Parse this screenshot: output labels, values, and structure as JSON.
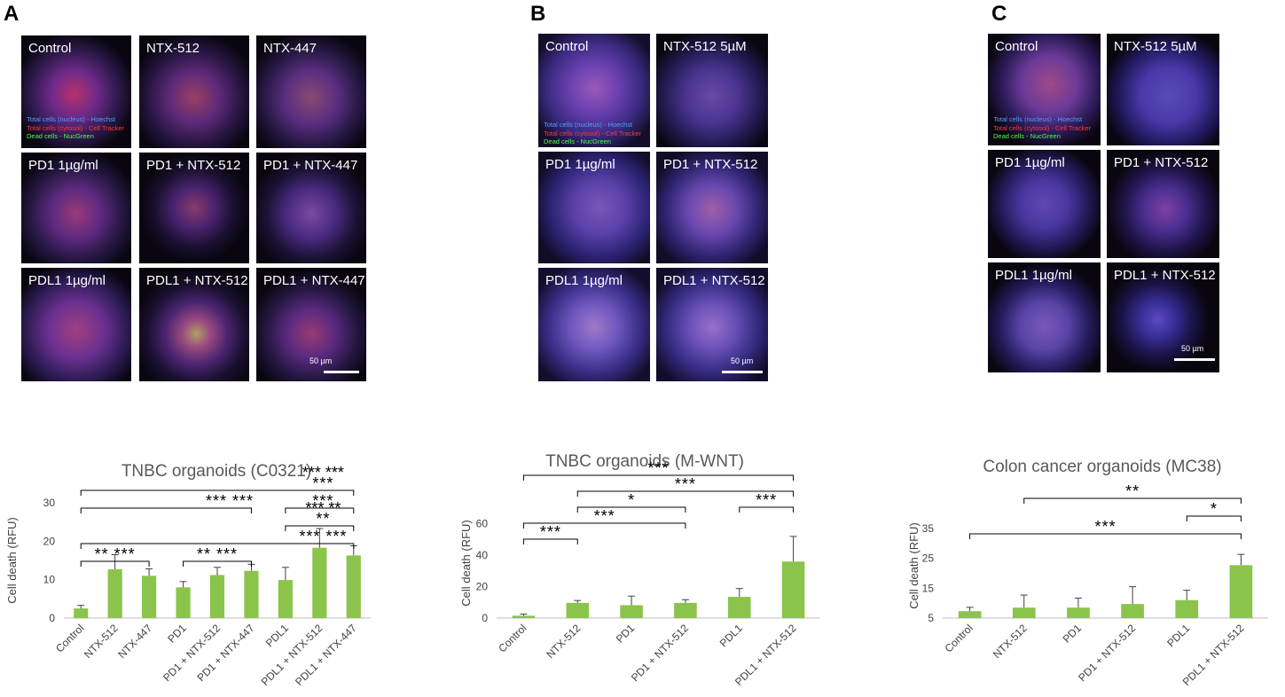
{
  "panels": [
    {
      "letter": "A",
      "legend": [
        "Total cells (nucleus) - Hoechst",
        "Total cells (cytosol) - Cell Tracker",
        "Dead cells - NucGreen"
      ],
      "legend_colors": [
        "#4aa3ff",
        "#ff3a3a",
        "#4cff4c"
      ],
      "scalebar": "50 µm",
      "tiles": [
        "Control",
        "NTX-512",
        "NTX-447",
        "PD1 1µg/ml",
        "PD1 + NTX-512",
        "PD1 + NTX-447",
        "PDL1 1µg/ml",
        "PDL1 + NTX-512",
        "PDL1 + NTX-447"
      ]
    },
    {
      "letter": "B",
      "legend": [
        "Total cells (nucleus) - Hoechst",
        "Total cells (cytosol) - Cell Tracker",
        "Dead cells - NucGreen"
      ],
      "legend_colors": [
        "#4aa3ff",
        "#ff3a3a",
        "#4cff4c"
      ],
      "scalebar": "50 µm",
      "tiles": [
        "Control",
        "NTX-512   5µM",
        "PD1 1µg/ml",
        "PD1 + NTX-512",
        "PDL1 1µg/ml",
        "PDL1 + NTX-512"
      ]
    },
    {
      "letter": "C",
      "legend": [
        "Total cells (nucleus) - Hoechst",
        "Total cells (cytosol) - Cell Tracker",
        "Dead cells - NucGreen"
      ],
      "legend_colors": [
        "#4aa3ff",
        "#ff3a3a",
        "#4cff4c"
      ],
      "scalebar": "50 µm",
      "tiles": [
        "Control",
        "NTX-512   5µM",
        "PD1 1µg/ml",
        "PD1 + NTX-512",
        "PDL1 1µg/ml",
        "PDL1 + NTX-512"
      ]
    }
  ],
  "chart_data": [
    {
      "type": "bar",
      "title": "TNBC organoids (C0321)",
      "ylabel": "Cell death (RFU)",
      "ylim": [
        0,
        30
      ],
      "yticks": [
        0,
        10,
        20,
        30
      ],
      "categories": [
        "Control",
        "NTX-512",
        "NTX-447",
        "PD1",
        "PD1 + NTX-512",
        "PD1 + NTX-447",
        "PDL1",
        "PDL1 + NTX-512",
        "PDL1 + NTX-447"
      ],
      "values": [
        2.5,
        12.7,
        11.0,
        8.0,
        11.2,
        12.3,
        9.9,
        18.3,
        16.3
      ],
      "errors": [
        0.8,
        3.8,
        1.8,
        1.5,
        2.0,
        1.7,
        3.3,
        5.0,
        2.5
      ],
      "bar_color": "#8ac44a",
      "significance": [
        {
          "from": 0,
          "to": 8,
          "label": "***",
          "level": 5
        },
        {
          "from": 6,
          "to": 8,
          "label": "***",
          "level": 4
        },
        {
          "from": 0,
          "to": 5,
          "label": "*** ***",
          "level": 4
        },
        {
          "from": 6,
          "to": 8,
          "label": "**",
          "level": 3
        },
        {
          "from": 0,
          "to": 8,
          "label": "*** ***",
          "level": 2
        },
        {
          "from": 0,
          "to": 2,
          "label": "** ***",
          "level": 1
        },
        {
          "from": 3,
          "to": 5,
          "label": "** ***",
          "level": 1
        }
      ],
      "header_stars": [
        "*** ***",
        "*** **"
      ]
    },
    {
      "type": "bar",
      "title": "TNBC organoids (M-WNT)",
      "ylabel": "Cell death (RFU)",
      "ylim": [
        0,
        70
      ],
      "yticks": [
        0,
        20,
        40,
        60
      ],
      "categories": [
        "Control",
        "NTX-512",
        "PD1",
        "PD1 + NTX-512",
        "PDL1",
        "PDL1 + NTX-512"
      ],
      "values": [
        1.5,
        9.7,
        8.2,
        9.7,
        13.5,
        36.0
      ],
      "errors": [
        1.0,
        1.5,
        5.8,
        2.0,
        5.3,
        16.0
      ],
      "bar_color": "#8ac44a",
      "significance": [
        {
          "from": 0,
          "to": 5,
          "label": "***",
          "level": 5
        },
        {
          "from": 1,
          "to": 5,
          "label": "***",
          "level": 4
        },
        {
          "from": 1,
          "to": 3,
          "label": "*",
          "level": 3
        },
        {
          "from": 4,
          "to": 5,
          "label": "***",
          "level": 3
        },
        {
          "from": 0,
          "to": 3,
          "label": "***",
          "level": 2
        },
        {
          "from": 0,
          "to": 1,
          "label": "***",
          "level": 1
        }
      ]
    },
    {
      "type": "bar",
      "title": "Colon cancer organoids (MC38)",
      "ylabel": "Cell death (RFU)",
      "ylim": [
        5,
        40
      ],
      "yticks": [
        5,
        15,
        25,
        35
      ],
      "categories": [
        "Control",
        "NTX-512",
        "PD1",
        "PD1 + NTX-512",
        "PDL1",
        "PDL1 + NTX-512"
      ],
      "values": [
        7.3,
        8.5,
        8.5,
        9.7,
        11.0,
        22.7
      ],
      "errors": [
        1.3,
        4.2,
        3.2,
        5.8,
        3.3,
        3.6
      ],
      "bar_color": "#8ac44a",
      "significance": [
        {
          "from": 1,
          "to": 5,
          "label": "**",
          "level": 3
        },
        {
          "from": 4,
          "to": 5,
          "label": "*",
          "level": 2
        },
        {
          "from": 0,
          "to": 5,
          "label": "***",
          "level": 1
        }
      ]
    }
  ]
}
